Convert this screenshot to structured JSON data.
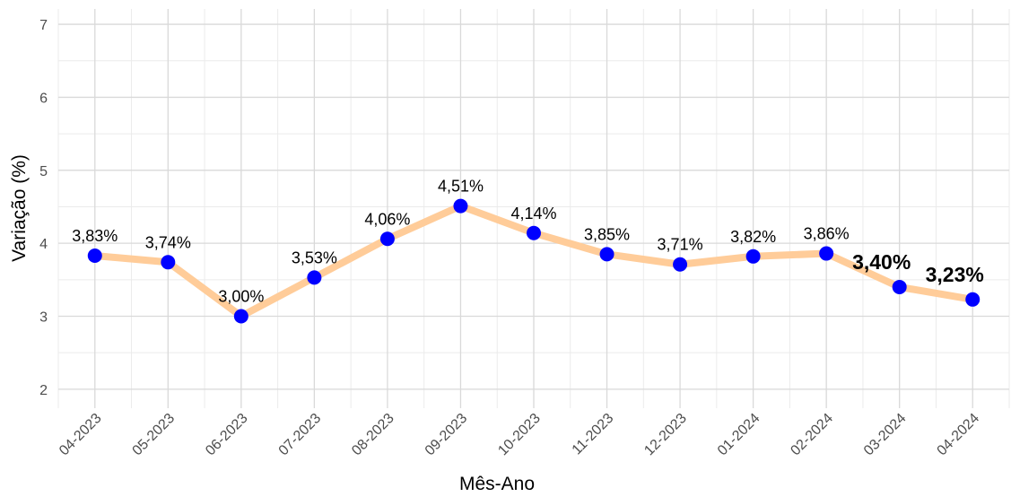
{
  "chart_data": {
    "type": "line",
    "x_label": "Mês-Ano",
    "y_label": "Variação (%)",
    "categories": [
      "04-2023",
      "05-2023",
      "06-2023",
      "07-2023",
      "08-2023",
      "09-2023",
      "10-2023",
      "11-2023",
      "12-2023",
      "01-2024",
      "02-2024",
      "03-2024",
      "04-2024"
    ],
    "values": [
      3.83,
      3.74,
      3.0,
      3.53,
      4.06,
      4.51,
      4.14,
      3.85,
      3.71,
      3.82,
      3.86,
      3.4,
      3.23
    ],
    "value_labels": [
      "3,83%",
      "3,74%",
      "3,00%",
      "3,53%",
      "4,06%",
      "4,51%",
      "4,14%",
      "3,85%",
      "3,71%",
      "3,82%",
      "3,86%",
      "3,40%",
      "3,23%"
    ],
    "value_label_bold": [
      false,
      false,
      false,
      false,
      false,
      false,
      false,
      false,
      false,
      false,
      false,
      true,
      true
    ],
    "line_color": "#ffcc99",
    "marker_color": "#0000ff",
    "ylim": [
      1.74,
      7.21
    ],
    "yticks": [
      2,
      3,
      4,
      5,
      6,
      7
    ],
    "grid": true
  }
}
